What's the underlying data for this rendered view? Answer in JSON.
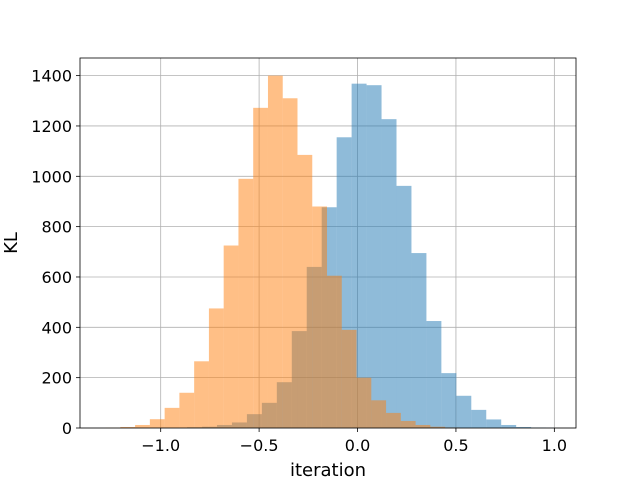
{
  "chart_data": {
    "type": "histogram",
    "title": "",
    "xlabel": "iteration",
    "ylabel": "KL",
    "xlim": [
      -1.41,
      1.11
    ],
    "ylim": [
      0,
      1470
    ],
    "xticks": [
      -1.0,
      -0.5,
      0.0,
      0.5,
      1.0
    ],
    "xtick_labels": [
      "−1.0",
      "−0.5",
      "0.0",
      "0.5",
      "1.0"
    ],
    "yticks": [
      0,
      200,
      400,
      600,
      800,
      1000,
      1200,
      1400
    ],
    "ytick_labels": [
      "0",
      "200",
      "400",
      "600",
      "800",
      "1000",
      "1200",
      "1400"
    ],
    "grid": true,
    "legend": false,
    "series": [
      {
        "color": "#1f77b4",
        "opacity": 0.5,
        "bins": [
          {
            "x0": -0.866,
            "x1": -0.79,
            "count": 3
          },
          {
            "x0": -0.79,
            "x1": -0.714,
            "count": 5
          },
          {
            "x0": -0.714,
            "x1": -0.638,
            "count": 12
          },
          {
            "x0": -0.638,
            "x1": -0.562,
            "count": 22
          },
          {
            "x0": -0.562,
            "x1": -0.486,
            "count": 55
          },
          {
            "x0": -0.486,
            "x1": -0.41,
            "count": 100
          },
          {
            "x0": -0.41,
            "x1": -0.334,
            "count": 182
          },
          {
            "x0": -0.334,
            "x1": -0.258,
            "count": 385
          },
          {
            "x0": -0.258,
            "x1": -0.182,
            "count": 640
          },
          {
            "x0": -0.182,
            "x1": -0.106,
            "count": 877
          },
          {
            "x0": -0.106,
            "x1": -0.03,
            "count": 1155
          },
          {
            "x0": -0.03,
            "x1": 0.046,
            "count": 1368
          },
          {
            "x0": 0.046,
            "x1": 0.122,
            "count": 1362
          },
          {
            "x0": 0.122,
            "x1": 0.198,
            "count": 1227
          },
          {
            "x0": 0.198,
            "x1": 0.274,
            "count": 962
          },
          {
            "x0": 0.274,
            "x1": 0.35,
            "count": 695
          },
          {
            "x0": 0.35,
            "x1": 0.426,
            "count": 425
          },
          {
            "x0": 0.426,
            "x1": 0.502,
            "count": 218
          },
          {
            "x0": 0.502,
            "x1": 0.578,
            "count": 128
          },
          {
            "x0": 0.578,
            "x1": 0.654,
            "count": 72
          },
          {
            "x0": 0.654,
            "x1": 0.73,
            "count": 34
          },
          {
            "x0": 0.73,
            "x1": 0.806,
            "count": 12
          },
          {
            "x0": 0.806,
            "x1": 0.882,
            "count": 4
          },
          {
            "x0": 0.882,
            "x1": 0.958,
            "count": 2
          },
          {
            "x0": 0.958,
            "x1": 1.0,
            "count": 1
          }
        ]
      },
      {
        "color": "#ff7f0e",
        "opacity": 0.5,
        "bins": [
          {
            "x0": -1.28,
            "x1": -1.205,
            "count": 1
          },
          {
            "x0": -1.205,
            "x1": -1.13,
            "count": 4
          },
          {
            "x0": -1.13,
            "x1": -1.055,
            "count": 12
          },
          {
            "x0": -1.055,
            "x1": -0.98,
            "count": 35
          },
          {
            "x0": -0.98,
            "x1": -0.905,
            "count": 80
          },
          {
            "x0": -0.905,
            "x1": -0.83,
            "count": 140
          },
          {
            "x0": -0.83,
            "x1": -0.755,
            "count": 265
          },
          {
            "x0": -0.755,
            "x1": -0.68,
            "count": 475
          },
          {
            "x0": -0.68,
            "x1": -0.605,
            "count": 725
          },
          {
            "x0": -0.605,
            "x1": -0.53,
            "count": 990
          },
          {
            "x0": -0.53,
            "x1": -0.455,
            "count": 1272
          },
          {
            "x0": -0.455,
            "x1": -0.38,
            "count": 1400
          },
          {
            "x0": -0.38,
            "x1": -0.305,
            "count": 1310
          },
          {
            "x0": -0.305,
            "x1": -0.23,
            "count": 1085
          },
          {
            "x0": -0.23,
            "x1": -0.155,
            "count": 880
          },
          {
            "x0": -0.155,
            "x1": -0.08,
            "count": 605
          },
          {
            "x0": -0.08,
            "x1": -0.005,
            "count": 390
          },
          {
            "x0": -0.005,
            "x1": 0.07,
            "count": 200
          },
          {
            "x0": 0.07,
            "x1": 0.145,
            "count": 110
          },
          {
            "x0": 0.145,
            "x1": 0.22,
            "count": 60
          },
          {
            "x0": 0.22,
            "x1": 0.295,
            "count": 28
          },
          {
            "x0": 0.295,
            "x1": 0.37,
            "count": 12
          },
          {
            "x0": 0.37,
            "x1": 0.445,
            "count": 5
          },
          {
            "x0": 0.445,
            "x1": 0.52,
            "count": 2
          }
        ]
      }
    ]
  }
}
